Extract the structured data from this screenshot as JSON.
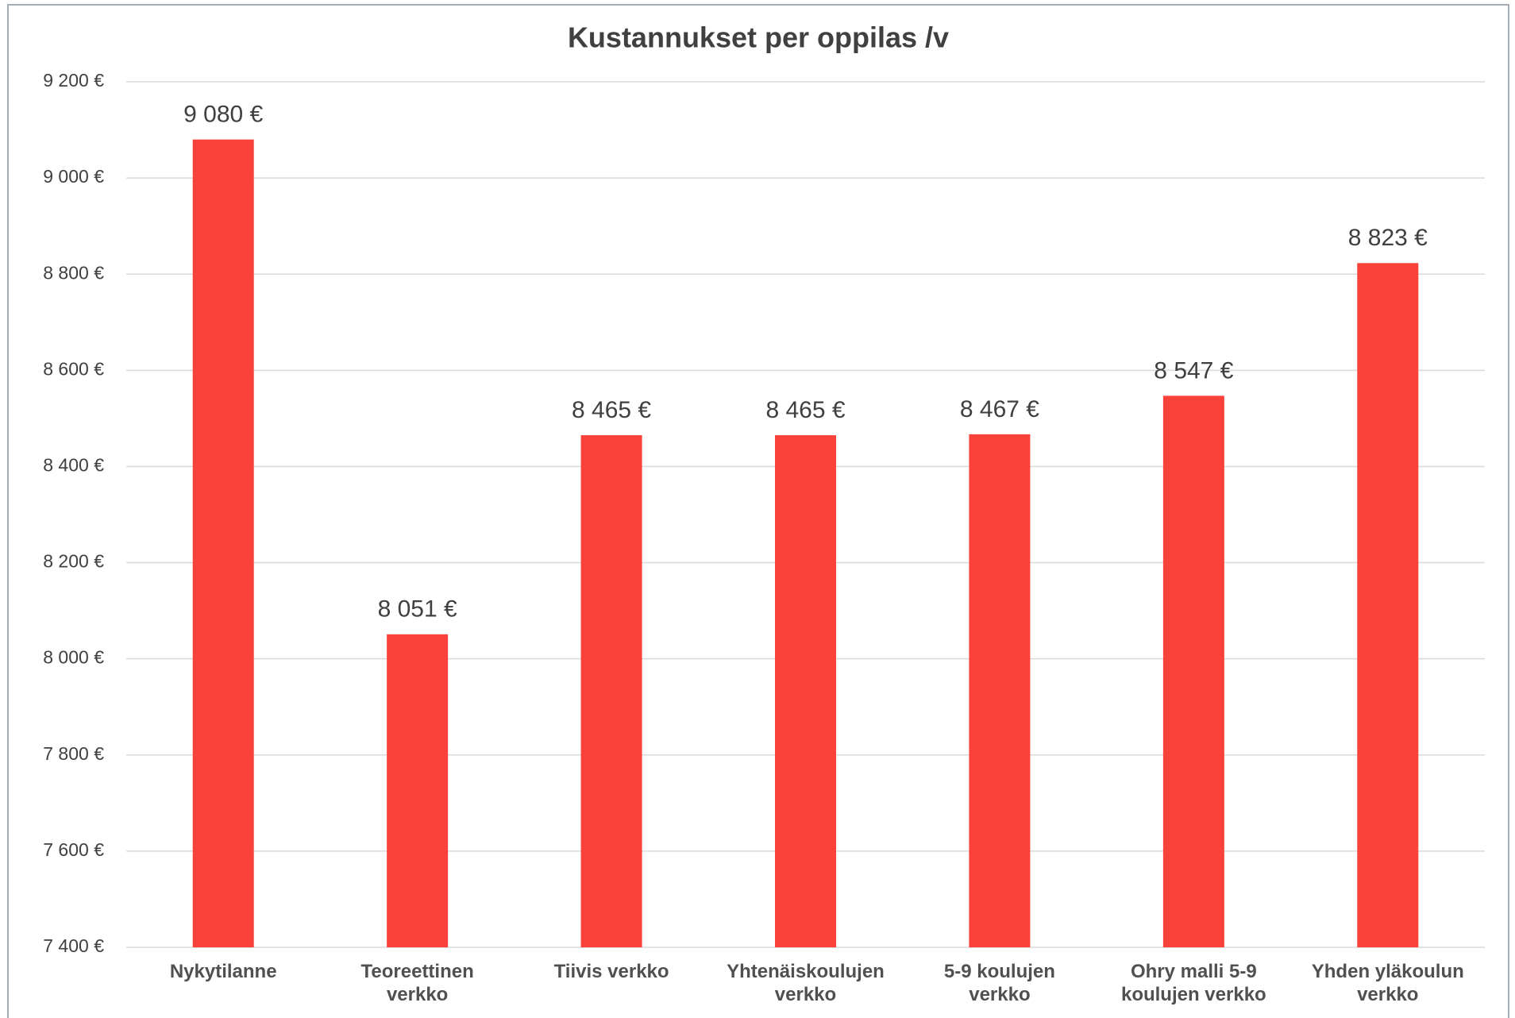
{
  "chart_data": {
    "type": "bar",
    "title": "Kustannukset per oppilas /v",
    "categories": [
      "Nykytilanne",
      "Teoreettinen verkko",
      "Tiivis verkko",
      "Yhtenäiskoulujen verkko",
      "5-9 koulujen verkko",
      "Ohry malli 5-9 koulujen verkko",
      "Yhden yläkoulun verkko"
    ],
    "values": [
      9080,
      8051,
      8465,
      8465,
      8467,
      8547,
      8823
    ],
    "value_labels": [
      "9 080 €",
      "8 051 €",
      "8 465 €",
      "8 465 €",
      "8 467 €",
      "8 547 €",
      "8 823 €"
    ],
    "color": "#fa423b",
    "ylim": [
      7400,
      9200
    ],
    "yticks": [
      {
        "value": 7400,
        "label": "7 400 €"
      },
      {
        "value": 7600,
        "label": "7 600 €"
      },
      {
        "value": 7800,
        "label": "7 800 €"
      },
      {
        "value": 8000,
        "label": "8 000 €"
      },
      {
        "value": 8200,
        "label": "8 200 €"
      },
      {
        "value": 8400,
        "label": "8 400 €"
      },
      {
        "value": 8600,
        "label": "8 600 €"
      },
      {
        "value": 8800,
        "label": "8 800 €"
      },
      {
        "value": 9000,
        "label": "9 000 €"
      },
      {
        "value": 9200,
        "label": "9 200 €"
      }
    ],
    "grid": true
  }
}
